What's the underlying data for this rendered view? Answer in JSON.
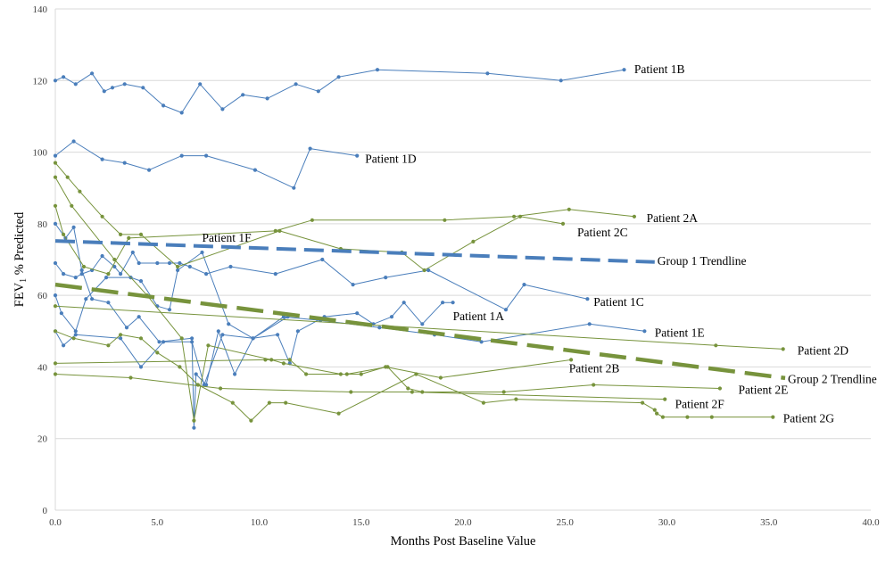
{
  "chart_data": {
    "type": "line",
    "xlabel": "Months Post Baseline Value",
    "ylabel": "FEV1 % Predicted",
    "ylabel_main": "FEV",
    "ylabel_sub": "1",
    "ylabel_rest": " % Predicted",
    "xlim": [
      0,
      40
    ],
    "ylim": [
      0,
      140
    ],
    "xticks": [
      "0.0",
      "5.0",
      "10.0",
      "15.0",
      "20.0",
      "25.0",
      "30.0",
      "35.0",
      "40.0"
    ],
    "yticks": [
      "0",
      "20",
      "40",
      "60",
      "80",
      "100",
      "120",
      "140"
    ],
    "grid": "horizontal",
    "colors": {
      "group1": "#4a7ebb",
      "group2": "#77933c"
    },
    "series": [
      {
        "name": "Patient 1B",
        "group": 1,
        "label_at": [
          28.4,
          123
        ],
        "points": [
          [
            0,
            120
          ],
          [
            0.4,
            121
          ],
          [
            1,
            119
          ],
          [
            1.8,
            122
          ],
          [
            2.4,
            117
          ],
          [
            2.8,
            118
          ],
          [
            3.4,
            119
          ],
          [
            4.3,
            118
          ],
          [
            5.3,
            113
          ],
          [
            6.2,
            111
          ],
          [
            7.1,
            119
          ],
          [
            8.2,
            112
          ],
          [
            9.2,
            116
          ],
          [
            10.4,
            115
          ],
          [
            11.8,
            119
          ],
          [
            12.9,
            117
          ],
          [
            13.9,
            121
          ],
          [
            15.8,
            123
          ],
          [
            21.2,
            122
          ],
          [
            24.8,
            120
          ],
          [
            27.9,
            123
          ]
        ]
      },
      {
        "name": "Patient 1D",
        "group": 1,
        "label_at": [
          15.2,
          98
        ],
        "points": [
          [
            0,
            99
          ],
          [
            0.9,
            103
          ],
          [
            2.3,
            98
          ],
          [
            3.4,
            97
          ],
          [
            4.6,
            95
          ],
          [
            6.2,
            99
          ],
          [
            7.4,
            99
          ],
          [
            9.8,
            95
          ],
          [
            11.7,
            90
          ],
          [
            12.5,
            101
          ],
          [
            14.8,
            99
          ]
        ]
      },
      {
        "name": "Patient 1F",
        "group": 1,
        "label_at": [
          7.2,
          76
        ],
        "points": [
          [
            0,
            80
          ],
          [
            0.5,
            76
          ],
          [
            0.9,
            79
          ],
          [
            1.3,
            67
          ],
          [
            1.8,
            59
          ],
          [
            2.6,
            58
          ],
          [
            3.5,
            51
          ],
          [
            4.1,
            54
          ],
          [
            5.1,
            47
          ],
          [
            6.7,
            48
          ],
          [
            6.8,
            23
          ],
          [
            6.9,
            38
          ],
          [
            7.4,
            35
          ],
          [
            8.0,
            50
          ],
          [
            8.8,
            38
          ],
          [
            9.7,
            48
          ],
          [
            11.4,
            54
          ]
        ]
      },
      {
        "name": "Patient 1C",
        "group": 1,
        "label_at": [
          26.4,
          58
        ],
        "points": [
          [
            0,
            69
          ],
          [
            0.4,
            66
          ],
          [
            1,
            65
          ],
          [
            1.3,
            66
          ],
          [
            1.8,
            67
          ],
          [
            2.3,
            71
          ],
          [
            2.9,
            68
          ],
          [
            3.2,
            66
          ],
          [
            3.8,
            72
          ],
          [
            4.1,
            69
          ],
          [
            5.0,
            69
          ],
          [
            5.6,
            69
          ],
          [
            6.1,
            69
          ],
          [
            6.6,
            68
          ],
          [
            7.4,
            66
          ],
          [
            8.6,
            68
          ],
          [
            10.8,
            66
          ],
          [
            13.1,
            70
          ],
          [
            14.6,
            63
          ],
          [
            16.2,
            65
          ],
          [
            18.3,
            67
          ],
          [
            22.1,
            56
          ],
          [
            23.0,
            63
          ],
          [
            26.1,
            59
          ]
        ]
      },
      {
        "name": "Patient 1A",
        "group": 1,
        "label_at": [
          19.5,
          54
        ],
        "points": [
          [
            0,
            60
          ],
          [
            0.3,
            55
          ],
          [
            1.0,
            50
          ],
          [
            1.5,
            59
          ],
          [
            2.5,
            65
          ],
          [
            3.7,
            65
          ],
          [
            4.2,
            64
          ],
          [
            5.0,
            57
          ],
          [
            5.6,
            56
          ],
          [
            6.0,
            67
          ],
          [
            7.2,
            72
          ],
          [
            8.5,
            52
          ],
          [
            9.7,
            48
          ],
          [
            10.9,
            49
          ],
          [
            11.5,
            41
          ],
          [
            11.9,
            50
          ],
          [
            13.2,
            54
          ],
          [
            14.8,
            55
          ],
          [
            15.6,
            52
          ],
          [
            16.5,
            54
          ],
          [
            17.1,
            58
          ],
          [
            18.0,
            52
          ],
          [
            19.0,
            58
          ],
          [
            19.5,
            58
          ]
        ]
      },
      {
        "name": "Patient 1E",
        "group": 1,
        "label_at": [
          29.4,
          49.5
        ],
        "points": [
          [
            0,
            50
          ],
          [
            0.4,
            46
          ],
          [
            1.0,
            49
          ],
          [
            3.2,
            48
          ],
          [
            4.2,
            40
          ],
          [
            5.3,
            47
          ],
          [
            6.7,
            47
          ],
          [
            7.3,
            35
          ],
          [
            8.2,
            49
          ],
          [
            9.7,
            48
          ],
          [
            11.2,
            54
          ],
          [
            13.0,
            53
          ],
          [
            15.9,
            51
          ],
          [
            18.6,
            49
          ],
          [
            20.9,
            47
          ],
          [
            26.2,
            52
          ],
          [
            28.9,
            50
          ]
        ]
      },
      {
        "name": "Patient 2A",
        "group": 2,
        "label_at": [
          29.0,
          81.5
        ],
        "points": [
          [
            0,
            85
          ],
          [
            0.4,
            77
          ],
          [
            1.4,
            68
          ],
          [
            2.6,
            66
          ],
          [
            3.6,
            76
          ],
          [
            10.8,
            78
          ],
          [
            12.6,
            81
          ],
          [
            19.1,
            81
          ],
          [
            22.5,
            82
          ],
          [
            25.2,
            84
          ],
          [
            28.4,
            82
          ]
        ]
      },
      {
        "name": "Patient 2C",
        "group": 2,
        "label_at": [
          25.6,
          77.5
        ],
        "points": [
          [
            0,
            97
          ],
          [
            0.6,
            93
          ],
          [
            1.2,
            89
          ],
          [
            2.3,
            82
          ],
          [
            3.2,
            77
          ],
          [
            4.2,
            77
          ],
          [
            6.0,
            68
          ],
          [
            11.0,
            78
          ],
          [
            14.0,
            73
          ],
          [
            17.0,
            72
          ],
          [
            18.1,
            67
          ],
          [
            20.5,
            75
          ],
          [
            22.8,
            82
          ],
          [
            24.9,
            80
          ]
        ]
      },
      {
        "name": "Patient 2D",
        "group": 2,
        "label_at": [
          36.4,
          44.5
        ],
        "points": [
          [
            0,
            57
          ],
          [
            32.4,
            46
          ],
          [
            35.7,
            45
          ]
        ]
      },
      {
        "name": "Patient 2B",
        "group": 2,
        "label_at": [
          25.2,
          39.5
        ],
        "points": [
          [
            0,
            93
          ],
          [
            0.8,
            85
          ],
          [
            2.9,
            70
          ],
          [
            4.5,
            60
          ],
          [
            6.2,
            48
          ],
          [
            6.8,
            25
          ],
          [
            7.5,
            46
          ],
          [
            10.6,
            42
          ],
          [
            11.2,
            41
          ],
          [
            14.0,
            38
          ],
          [
            15.0,
            38
          ],
          [
            16.2,
            40
          ],
          [
            18.9,
            37
          ],
          [
            25.3,
            42
          ]
        ]
      },
      {
        "name": "Patient 2E",
        "group": 2,
        "label_at": [
          33.5,
          33.5
        ],
        "points": [
          [
            0,
            41
          ],
          [
            10.3,
            42
          ],
          [
            11.5,
            42
          ],
          [
            12.3,
            38
          ],
          [
            14.3,
            38
          ],
          [
            16.3,
            40
          ],
          [
            17.3,
            34
          ],
          [
            18.0,
            33
          ],
          [
            22.0,
            33
          ],
          [
            26.4,
            35
          ],
          [
            32.6,
            34
          ]
        ]
      },
      {
        "name": "Patient 2F",
        "group": 2,
        "label_at": [
          30.4,
          29.5
        ],
        "points": [
          [
            0,
            38
          ],
          [
            3.7,
            37
          ],
          [
            8.1,
            34
          ],
          [
            14.5,
            33
          ],
          [
            17.5,
            33
          ],
          [
            29.9,
            31
          ]
        ]
      },
      {
        "name": "Patient 2G",
        "group": 2,
        "label_at": [
          35.7,
          25.5
        ],
        "points": [
          [
            0,
            50
          ],
          [
            0.9,
            48
          ],
          [
            2.6,
            46
          ],
          [
            3.2,
            49
          ],
          [
            4.2,
            48
          ],
          [
            5.0,
            44
          ],
          [
            6.1,
            40
          ],
          [
            7.0,
            35
          ],
          [
            8.7,
            30
          ],
          [
            9.6,
            25
          ],
          [
            10.5,
            30
          ],
          [
            11.3,
            30
          ],
          [
            13.9,
            27
          ],
          [
            17.7,
            38
          ],
          [
            21.0,
            30
          ],
          [
            22.6,
            31
          ],
          [
            28.8,
            30
          ],
          [
            29.4,
            28
          ],
          [
            29.5,
            27
          ],
          [
            29.8,
            26
          ],
          [
            31.0,
            26
          ],
          [
            32.2,
            26
          ],
          [
            35.2,
            26
          ]
        ]
      }
    ],
    "trendlines": [
      {
        "name": "Group 1 Trendline",
        "group": 1,
        "label_at": [
          29.4,
          69.5
        ],
        "from": [
          0,
          75.2
        ],
        "to": [
          29.4,
          69.3
        ]
      },
      {
        "name": "Group 2 Trendline",
        "group": 2,
        "label_at": [
          35.8,
          36.5
        ],
        "from": [
          0,
          63
        ],
        "to": [
          35.8,
          36.9
        ]
      }
    ]
  }
}
